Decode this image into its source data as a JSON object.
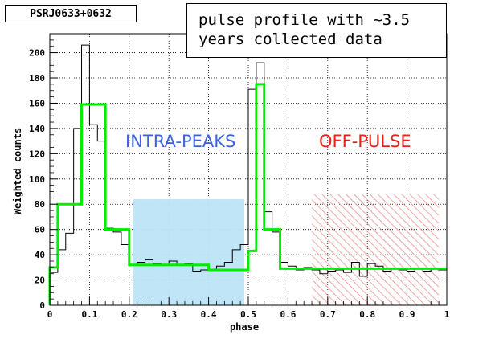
{
  "header": {
    "object_name": "PSRJ0633+0632"
  },
  "annotation": {
    "line1": "pulse profile with ~3.5",
    "line2": "years collected data"
  },
  "regions": [
    {
      "label": "INTRA-PEAKS",
      "x_start": 0.21,
      "x_end": 0.49,
      "y_top": 84,
      "fill": "#bde4f6",
      "color": "#3b63e0"
    },
    {
      "label": "OFF-PULSE",
      "x_start": 0.66,
      "x_end": 0.98,
      "y_top": 88,
      "fill": "#f0a5a5",
      "color": "#e8201b"
    }
  ],
  "chart_data": {
    "type": "line",
    "xlabel": "phase",
    "ylabel": "Weighted counts",
    "xlim": [
      0,
      1
    ],
    "ylim": [
      0,
      215
    ],
    "x_ticks": [
      "0",
      "0.1",
      "0.2",
      "0.3",
      "0.4",
      "0.5",
      "0.6",
      "0.7",
      "0.8",
      "0.9",
      "1"
    ],
    "y_ticks": [
      "0",
      "20",
      "40",
      "60",
      "80",
      "100",
      "120",
      "140",
      "160",
      "180",
      "200"
    ],
    "grid": true,
    "series": [
      {
        "style": "thin-histogram",
        "color": "#000000",
        "bin_edges": [
          0,
          0.02,
          0.04,
          0.06,
          0.08,
          0.1,
          0.12,
          0.14,
          0.16,
          0.18,
          0.2,
          0.22,
          0.24,
          0.26,
          0.28,
          0.3,
          0.32,
          0.34,
          0.36,
          0.38,
          0.4,
          0.42,
          0.44,
          0.46,
          0.48,
          0.5,
          0.52,
          0.54,
          0.56,
          0.58,
          0.6,
          0.62,
          0.64,
          0.66,
          0.68,
          0.7,
          0.72,
          0.74,
          0.76,
          0.78,
          0.8,
          0.82,
          0.84,
          0.86,
          0.88,
          0.9,
          0.92,
          0.94,
          0.96,
          0.98,
          1.0
        ],
        "values": [
          26,
          44,
          57,
          140,
          206,
          143,
          130,
          61,
          58,
          48,
          32,
          34,
          36,
          33,
          32,
          35,
          32,
          33,
          27,
          28,
          28,
          31,
          34,
          44,
          48,
          171,
          192,
          74,
          58,
          34,
          31,
          28,
          30,
          28,
          25,
          27,
          28,
          26,
          34,
          23,
          33,
          31,
          27,
          29,
          28,
          27,
          29,
          27,
          29,
          28
        ]
      },
      {
        "style": "thick-step",
        "color": "#00ee00",
        "bin_edges": [
          0,
          0.02,
          0.08,
          0.14,
          0.2,
          0.4,
          0.5,
          0.52,
          0.54,
          0.58,
          0.62,
          1.0
        ],
        "values": [
          30,
          80,
          159,
          60,
          32,
          28,
          43,
          175,
          60,
          29,
          29
        ]
      }
    ]
  }
}
